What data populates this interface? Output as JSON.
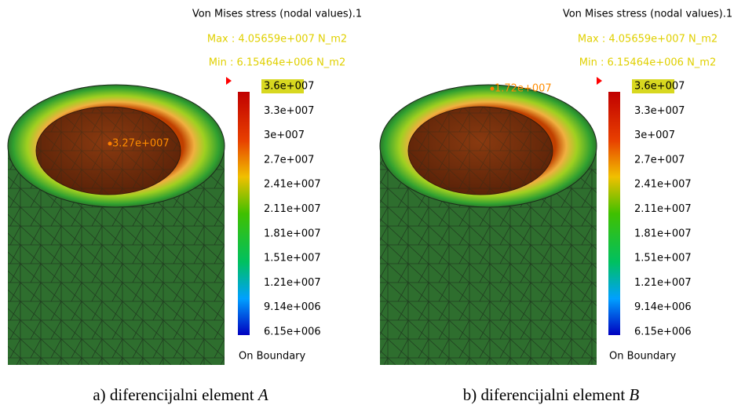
{
  "panels": [
    {
      "legend_title": "Von Mises stress (nodal values).1",
      "max": "Max : 4.05659e+007 N_m2",
      "min": "Min : 6.15464e+006 N_m2",
      "scale_labels": [
        "3.6e+007",
        "3.3e+007",
        "3e+007",
        "2.7e+007",
        "2.41e+007",
        "2.11e+007",
        "1.81e+007",
        "1.51e+007",
        "1.21e+007",
        "9.14e+006",
        "6.15e+006"
      ],
      "boundary": "On Boundary",
      "probe": "3.27e+007",
      "caption": "a) diferencijalni element",
      "caption_var": "A"
    },
    {
      "legend_title": "Von Mises stress (nodal values).1",
      "max": "Max : 4.05659e+007 N_m2",
      "min": "Min : 6.15464e+006 N_m2",
      "scale_labels": [
        "3.6e+007",
        "3.3e+007",
        "3e+007",
        "2.7e+007",
        "2.41e+007",
        "2.11e+007",
        "1.81e+007",
        "1.51e+007",
        "1.21e+007",
        "9.14e+006",
        "6.15e+006"
      ],
      "boundary": "On Boundary",
      "probe": "1.72e+007",
      "caption": "b) diferencijalni element",
      "caption_var": "B"
    }
  ]
}
